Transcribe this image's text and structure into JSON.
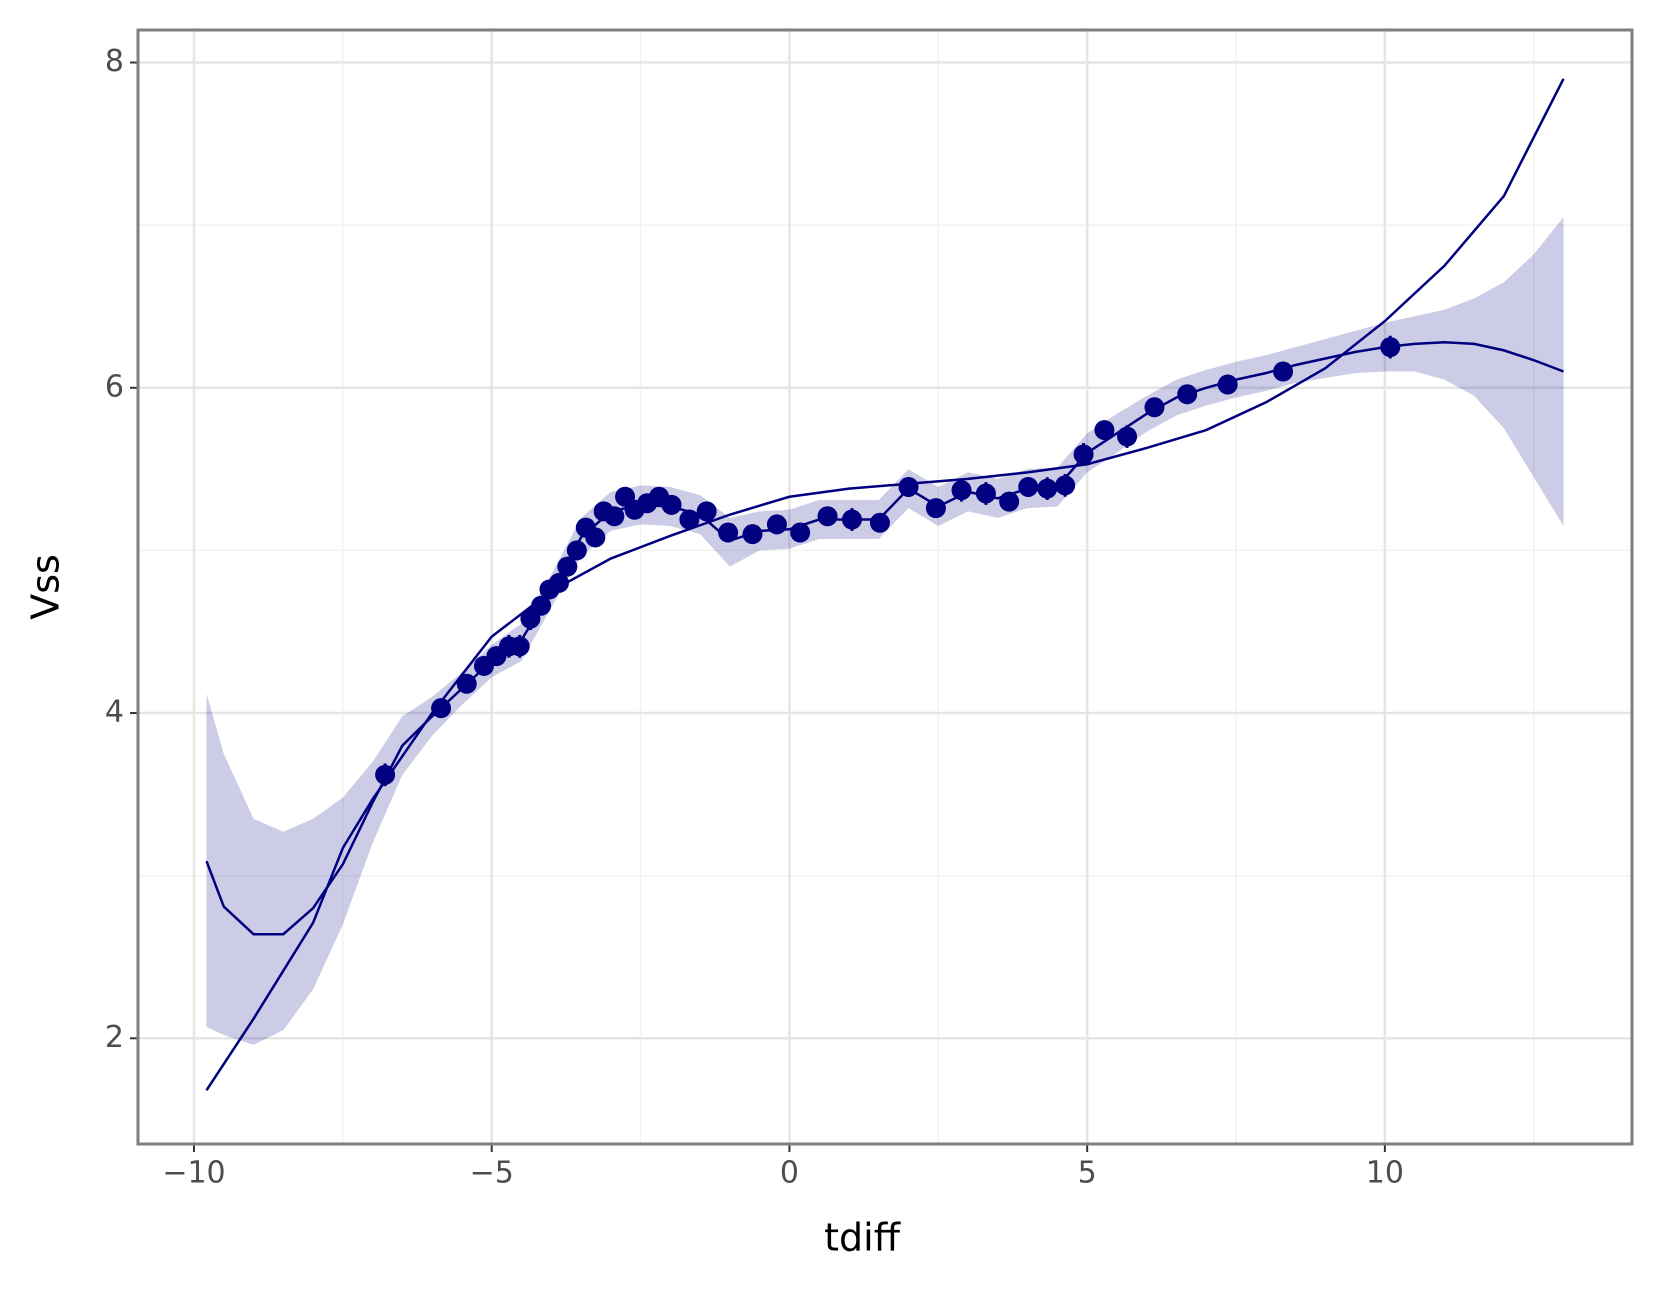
{
  "chart_data": {
    "type": "line",
    "x_label": "tdiff",
    "y_label": "Vss",
    "xlim": [
      -10.94,
      14.15
    ],
    "ylim": [
      1.35,
      8.2
    ],
    "xticks": [
      {
        "value": -10,
        "label": "−10"
      },
      {
        "value": -5,
        "label": "−5"
      },
      0,
      5,
      10
    ],
    "yticks": [
      2,
      4,
      6,
      8
    ],
    "minor_xticks": [
      -7.5,
      -2.5,
      2.5,
      7.5,
      12.5
    ],
    "minor_yticks": [
      3,
      5,
      7
    ],
    "grid": true,
    "color": "#000080",
    "points": {
      "x": [
        -6.79,
        -5.85,
        -5.42,
        -5.13,
        -4.92,
        -4.71,
        -4.53,
        -4.35,
        -4.17,
        -4.03,
        -3.87,
        -3.73,
        -3.57,
        -3.42,
        -3.26,
        -3.12,
        -2.94,
        -2.76,
        -2.6,
        -2.39,
        -2.19,
        -1.98,
        -1.68,
        -1.39,
        -1.03,
        -0.62,
        -0.21,
        0.18,
        0.64,
        1.05,
        1.52,
        2.0,
        2.46,
        2.89,
        3.3,
        3.69,
        4.01,
        4.33,
        4.63,
        4.94,
        5.29,
        5.67,
        6.13,
        6.68,
        7.36,
        8.29,
        10.09
      ],
      "y": [
        3.62,
        4.03,
        4.18,
        4.29,
        4.35,
        4.41,
        4.41,
        4.58,
        4.66,
        4.76,
        4.8,
        4.9,
        5.0,
        5.14,
        5.08,
        5.24,
        5.21,
        5.33,
        5.25,
        5.29,
        5.33,
        5.28,
        5.19,
        5.24,
        5.11,
        5.1,
        5.16,
        5.11,
        5.21,
        5.19,
        5.17,
        5.39,
        5.26,
        5.37,
        5.35,
        5.3,
        5.39,
        5.38,
        5.4,
        5.59,
        5.74,
        5.7,
        5.88,
        5.96,
        6.02,
        6.1,
        6.25
      ],
      "errors": [
        0.07,
        0.06,
        0.05,
        0.06,
        0.06,
        0.07,
        0.07,
        0.07,
        0.06,
        0.05,
        0.05,
        0.05,
        0.05,
        0.06,
        0.06,
        0.05,
        0.06,
        0.06,
        0.06,
        0.06,
        0.06,
        0.06,
        0.05,
        0.05,
        0.05,
        0.06,
        0.06,
        0.05,
        0.06,
        0.07,
        0.06,
        0.06,
        0.06,
        0.07,
        0.07,
        0.06,
        0.06,
        0.07,
        0.07,
        0.07,
        0.06,
        0.07,
        0.06,
        0.06,
        0.06,
        0.06,
        0.07
      ]
    },
    "smooth": {
      "x": [
        -9.79,
        -9.5,
        -9,
        -8.5,
        -8,
        -7.5,
        -7,
        -6.5,
        -6,
        -5.5,
        -5,
        -4.5,
        -4,
        -3.5,
        -3,
        -2.5,
        -2,
        -1.5,
        -1,
        -0.5,
        0,
        0.5,
        1,
        1.5,
        2,
        2.5,
        3,
        3.5,
        4,
        4.5,
        5,
        5.5,
        6,
        6.5,
        7,
        7.5,
        8,
        8.5,
        9,
        9.5,
        10,
        10.5,
        11,
        11.5,
        12,
        12.5,
        13
      ],
      "y": [
        3.09,
        2.81,
        2.64,
        2.64,
        2.8,
        3.07,
        3.45,
        3.8,
        3.98,
        4.15,
        4.32,
        4.45,
        4.75,
        5.08,
        5.24,
        5.28,
        5.27,
        5.22,
        5.06,
        5.12,
        5.13,
        5.19,
        5.19,
        5.19,
        5.38,
        5.27,
        5.36,
        5.32,
        5.38,
        5.39,
        5.6,
        5.72,
        5.84,
        5.94,
        6.0,
        6.05,
        6.09,
        6.14,
        6.18,
        6.22,
        6.25,
        6.27,
        6.28,
        6.27,
        6.23,
        6.17,
        6.1
      ],
      "ymin": [
        2.07,
        2.02,
        1.96,
        2.05,
        2.3,
        2.7,
        3.2,
        3.62,
        3.86,
        4.05,
        4.22,
        4.32,
        4.65,
        4.96,
        5.12,
        5.16,
        5.15,
        5.1,
        4.9,
        5.0,
        5.01,
        5.07,
        5.07,
        5.07,
        5.26,
        5.15,
        5.24,
        5.2,
        5.26,
        5.27,
        5.48,
        5.6,
        5.73,
        5.83,
        5.89,
        5.94,
        5.98,
        6.03,
        6.06,
        6.09,
        6.1,
        6.1,
        6.05,
        5.95,
        5.75,
        5.45,
        5.15
      ],
      "ymax": [
        4.12,
        3.75,
        3.35,
        3.27,
        3.35,
        3.48,
        3.7,
        3.98,
        4.1,
        4.25,
        4.42,
        4.55,
        4.85,
        5.2,
        5.36,
        5.4,
        5.39,
        5.34,
        5.2,
        5.24,
        5.25,
        5.31,
        5.31,
        5.31,
        5.5,
        5.39,
        5.48,
        5.44,
        5.5,
        5.51,
        5.72,
        5.84,
        5.95,
        6.05,
        6.11,
        6.16,
        6.2,
        6.25,
        6.3,
        6.35,
        6.4,
        6.44,
        6.48,
        6.55,
        6.65,
        6.82,
        7.05
      ]
    },
    "fit": {
      "x": [
        -9.79,
        -9,
        -8,
        -7.5,
        -7,
        -6,
        -5,
        -4,
        -3,
        -2,
        -1,
        0,
        1,
        2,
        3,
        4,
        5,
        6,
        7,
        8,
        9,
        10,
        11,
        12,
        13
      ],
      "y": [
        1.68,
        2.12,
        2.71,
        3.17,
        3.47,
        4.0,
        4.47,
        4.75,
        4.95,
        5.09,
        5.22,
        5.33,
        5.38,
        5.41,
        5.44,
        5.48,
        5.53,
        5.63,
        5.74,
        5.91,
        6.12,
        6.41,
        6.75,
        7.18,
        7.9
      ]
    }
  }
}
